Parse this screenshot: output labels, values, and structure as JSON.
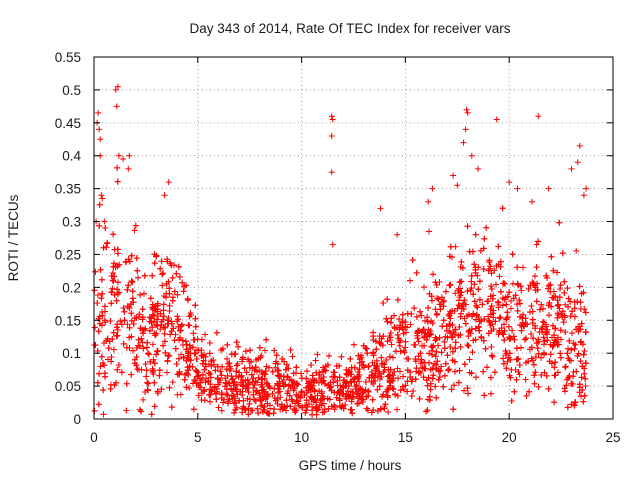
{
  "chart_data": {
    "type": "scatter",
    "title": "Day 343 of 2014, Rate Of TEC Index for receiver vars",
    "xlabel": "GPS time / hours",
    "ylabel": "ROTI / TECUs",
    "xlim": [
      0,
      25
    ],
    "ylim": [
      0,
      0.55
    ],
    "x_ticks": [
      0,
      5,
      10,
      15,
      20,
      25
    ],
    "y_ticks": [
      0,
      0.05,
      0.1,
      0.15,
      0.2,
      0.25,
      0.3,
      0.35,
      0.4,
      0.45,
      0.5,
      0.55
    ],
    "x_tick_labels": [
      "0",
      "5",
      "10",
      "15",
      "20",
      "25"
    ],
    "y_tick_labels": [
      "0",
      "0.05",
      "0.1",
      "0.15",
      "0.2",
      "0.25",
      "0.3",
      "0.35",
      "0.4",
      "0.45",
      "0.5",
      "0.55"
    ],
    "grid": true,
    "marker": "plus",
    "marker_color": "#ff0000",
    "x_data_range": [
      0,
      23.7
    ],
    "envelope": {
      "hours": [
        0,
        0.5,
        1,
        1.5,
        2,
        2.5,
        3,
        3.5,
        4,
        4.5,
        5,
        5.5,
        6,
        6.5,
        7,
        7.5,
        8,
        8.5,
        9,
        9.5,
        10,
        10.5,
        11,
        11.5,
        12,
        12.5,
        13,
        13.5,
        14,
        14.5,
        15,
        15.5,
        16,
        16.5,
        17,
        17.5,
        18,
        18.5,
        19,
        19.5,
        20,
        20.5,
        21,
        21.5,
        22,
        22.5,
        23,
        23.5,
        23.7
      ],
      "typical_roti": [
        0.14,
        0.15,
        0.16,
        0.16,
        0.14,
        0.11,
        0.13,
        0.15,
        0.14,
        0.11,
        0.07,
        0.06,
        0.06,
        0.06,
        0.055,
        0.05,
        0.05,
        0.05,
        0.055,
        0.05,
        0.04,
        0.045,
        0.05,
        0.045,
        0.045,
        0.05,
        0.06,
        0.07,
        0.08,
        0.09,
        0.1,
        0.11,
        0.11,
        0.12,
        0.13,
        0.15,
        0.16,
        0.17,
        0.17,
        0.16,
        0.12,
        0.12,
        0.14,
        0.15,
        0.14,
        0.13,
        0.12,
        0.1,
        0.09
      ],
      "spread": [
        0.12,
        0.12,
        0.12,
        0.11,
        0.1,
        0.09,
        0.1,
        0.1,
        0.09,
        0.08,
        0.05,
        0.04,
        0.04,
        0.045,
        0.045,
        0.05,
        0.05,
        0.045,
        0.045,
        0.045,
        0.035,
        0.04,
        0.04,
        0.04,
        0.04,
        0.045,
        0.05,
        0.06,
        0.07,
        0.07,
        0.08,
        0.08,
        0.08,
        0.09,
        0.09,
        0.1,
        0.1,
        0.1,
        0.1,
        0.1,
        0.08,
        0.08,
        0.09,
        0.09,
        0.09,
        0.09,
        0.09,
        0.08,
        0.07
      ]
    },
    "outliers": [
      {
        "x": 0.1,
        "y": 0.3
      },
      {
        "x": 0.15,
        "y": 0.45
      },
      {
        "x": 0.2,
        "y": 0.465
      },
      {
        "x": 0.25,
        "y": 0.44
      },
      {
        "x": 0.3,
        "y": 0.4
      },
      {
        "x": 0.3,
        "y": 0.425
      },
      {
        "x": 0.35,
        "y": 0.34
      },
      {
        "x": 0.4,
        "y": 0.335
      },
      {
        "x": 0.5,
        "y": 0.3
      },
      {
        "x": 1.05,
        "y": 0.5
      },
      {
        "x": 1.15,
        "y": 0.505
      },
      {
        "x": 1.1,
        "y": 0.475
      },
      {
        "x": 1.2,
        "y": 0.4
      },
      {
        "x": 1.4,
        "y": 0.395
      },
      {
        "x": 1.7,
        "y": 0.4
      },
      {
        "x": 1.65,
        "y": 0.38
      },
      {
        "x": 3.6,
        "y": 0.36
      },
      {
        "x": 3.4,
        "y": 0.34
      },
      {
        "x": 11.45,
        "y": 0.46
      },
      {
        "x": 11.5,
        "y": 0.455
      },
      {
        "x": 11.45,
        "y": 0.43
      },
      {
        "x": 11.45,
        "y": 0.375
      },
      {
        "x": 11.5,
        "y": 0.265
      },
      {
        "x": 13.8,
        "y": 0.32
      },
      {
        "x": 14.6,
        "y": 0.28
      },
      {
        "x": 16.1,
        "y": 0.33
      },
      {
        "x": 16.3,
        "y": 0.35
      },
      {
        "x": 17.3,
        "y": 0.37
      },
      {
        "x": 17.5,
        "y": 0.355
      },
      {
        "x": 17.8,
        "y": 0.42
      },
      {
        "x": 17.95,
        "y": 0.47
      },
      {
        "x": 18.0,
        "y": 0.465
      },
      {
        "x": 17.9,
        "y": 0.44
      },
      {
        "x": 18.2,
        "y": 0.4
      },
      {
        "x": 18.5,
        "y": 0.38
      },
      {
        "x": 19.4,
        "y": 0.455
      },
      {
        "x": 20.0,
        "y": 0.36
      },
      {
        "x": 20.4,
        "y": 0.35
      },
      {
        "x": 21.4,
        "y": 0.46
      },
      {
        "x": 21.1,
        "y": 0.33
      },
      {
        "x": 21.9,
        "y": 0.35
      },
      {
        "x": 23.4,
        "y": 0.415
      },
      {
        "x": 23.3,
        "y": 0.39
      },
      {
        "x": 23.0,
        "y": 0.38
      },
      {
        "x": 23.7,
        "y": 0.35
      },
      {
        "x": 23.6,
        "y": 0.34
      }
    ]
  }
}
